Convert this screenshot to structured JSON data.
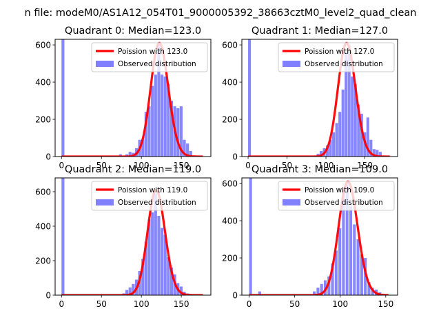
{
  "suptitle": "n file: modeM0/AS1A12_054T01_9000005392_38663cztM0_level2_quad_clean",
  "legend": {
    "line_prefix": "Poission with ",
    "hist_label": "Observed distribution"
  },
  "colors": {
    "line": "#ff0000",
    "hist": "#8080ff"
  },
  "chart_data": [
    {
      "type": "bar",
      "title": "Quadrant 0: Median=123.0",
      "xlim": [
        -8,
        187
      ],
      "ylim": [
        0,
        630
      ],
      "xticks": [
        0,
        50,
        100,
        150
      ],
      "yticks": [
        0,
        200,
        400,
        600
      ],
      "bin_width": 3.6,
      "poisson_mean": 123.0,
      "poisson_label": "123.0",
      "hist_bins": [
        [
          0,
          640
        ],
        [
          72,
          12
        ],
        [
          80,
          12
        ],
        [
          84,
          25
        ],
        [
          88,
          20
        ],
        [
          92,
          45
        ],
        [
          96,
          90
        ],
        [
          100,
          95
        ],
        [
          104,
          240
        ],
        [
          108,
          270
        ],
        [
          112,
          380
        ],
        [
          116,
          440
        ],
        [
          120,
          610
        ],
        [
          124,
          440
        ],
        [
          128,
          430
        ],
        [
          132,
          390
        ],
        [
          136,
          300
        ],
        [
          140,
          270
        ],
        [
          144,
          260
        ],
        [
          148,
          270
        ],
        [
          152,
          90
        ],
        [
          156,
          70
        ],
        [
          160,
          30
        ],
        [
          164,
          5
        ]
      ]
    },
    {
      "type": "bar",
      "title": "Quadrant 1: Median=127.0",
      "xlim": [
        -8,
        192
      ],
      "ylim": [
        0,
        630
      ],
      "xticks": [
        0,
        50,
        100,
        150
      ],
      "yticks": [
        0,
        200,
        400,
        600
      ],
      "bin_width": 3.6,
      "poisson_mean": 127.0,
      "poisson_label": "127.0",
      "hist_bins": [
        [
          0,
          640
        ],
        [
          80,
          5
        ],
        [
          88,
          15
        ],
        [
          92,
          30
        ],
        [
          96,
          45
        ],
        [
          100,
          60
        ],
        [
          104,
          90
        ],
        [
          108,
          130
        ],
        [
          112,
          180
        ],
        [
          116,
          240
        ],
        [
          120,
          360
        ],
        [
          124,
          560
        ],
        [
          128,
          600
        ],
        [
          132,
          430
        ],
        [
          136,
          390
        ],
        [
          140,
          280
        ],
        [
          144,
          230
        ],
        [
          148,
          130
        ],
        [
          152,
          210
        ],
        [
          156,
          90
        ],
        [
          160,
          40
        ],
        [
          164,
          35
        ],
        [
          168,
          25
        ]
      ]
    },
    {
      "type": "bar",
      "title": "Quadrant 2: Median=119.0",
      "xlim": [
        -8,
        187
      ],
      "ylim": [
        0,
        680
      ],
      "xticks": [
        0,
        50,
        100,
        150
      ],
      "yticks": [
        0,
        200,
        400,
        600
      ],
      "bin_width": 3.6,
      "poisson_mean": 119.0,
      "poisson_label": "119.0",
      "hist_bins": [
        [
          0,
          680
        ],
        [
          76,
          10
        ],
        [
          80,
          30
        ],
        [
          84,
          45
        ],
        [
          88,
          65
        ],
        [
          92,
          90
        ],
        [
          96,
          140
        ],
        [
          100,
          210
        ],
        [
          104,
          310
        ],
        [
          108,
          440
        ],
        [
          112,
          480
        ],
        [
          116,
          590
        ],
        [
          120,
          460
        ],
        [
          124,
          390
        ],
        [
          128,
          350
        ],
        [
          132,
          220
        ],
        [
          136,
          160
        ],
        [
          140,
          120
        ],
        [
          144,
          70
        ],
        [
          148,
          50
        ],
        [
          152,
          20
        ],
        [
          156,
          10
        ]
      ]
    },
    {
      "type": "bar",
      "title": "Quadrant 3: Median=109.0",
      "xlim": [
        -8,
        163
      ],
      "ylim": [
        0,
        630
      ],
      "xticks": [
        0,
        50,
        100,
        150
      ],
      "yticks": [
        0,
        200,
        400,
        600
      ],
      "bin_width": 3.1,
      "poisson_mean": 109.0,
      "poisson_label": "109.0",
      "hist_bins": [
        [
          0,
          640
        ],
        [
          10,
          20
        ],
        [
          66,
          5
        ],
        [
          70,
          20
        ],
        [
          74,
          40
        ],
        [
          78,
          60
        ],
        [
          82,
          80
        ],
        [
          86,
          100
        ],
        [
          90,
          170
        ],
        [
          94,
          240
        ],
        [
          98,
          360
        ],
        [
          102,
          560
        ],
        [
          106,
          600
        ],
        [
          110,
          480
        ],
        [
          114,
          380
        ],
        [
          118,
          300
        ],
        [
          122,
          220
        ],
        [
          126,
          200
        ],
        [
          130,
          70
        ],
        [
          134,
          40
        ],
        [
          138,
          30
        ],
        [
          142,
          15
        ]
      ]
    }
  ]
}
